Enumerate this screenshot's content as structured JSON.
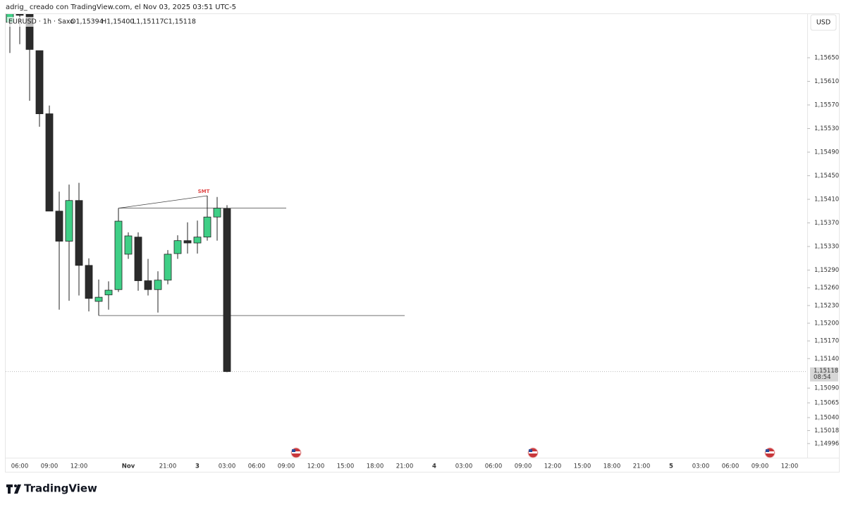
{
  "header": {
    "caption": "adrig_ creado con TradingView.com, el Nov 03, 2025 03:51 UTC-5",
    "brand": "TradingView"
  },
  "chart_data": {
    "type": "candlestick",
    "symbol": "EURUSD · 1h · Saxo",
    "legend_values": [
      "O1,15394",
      "H1,15400",
      "L1,15117",
      "C1,15118"
    ],
    "currency": "USD",
    "open": [
      1.1571,
      1.15724,
      1.15724,
      1.15662,
      1.15555,
      1.1539,
      1.15339,
      1.15408,
      1.15298,
      1.15237,
      1.15248,
      1.15257,
      1.15317,
      1.15346,
      1.15272,
      1.15257,
      1.15273,
      1.15318,
      1.1534,
      1.15336,
      1.15346,
      1.1538,
      1.15394
    ],
    "high": [
      1.1573,
      1.15726,
      1.15726,
      1.15662,
      1.15569,
      1.15423,
      1.15435,
      1.15438,
      1.1531,
      1.15274,
      1.15271,
      1.15395,
      1.15354,
      1.15354,
      1.15309,
      1.15288,
      1.15324,
      1.15349,
      1.15371,
      1.15374,
      1.15416,
      1.15414,
      1.154
    ],
    "low": [
      1.15658,
      1.15673,
      1.15577,
      1.15533,
      1.1539,
      1.15223,
      1.15238,
      1.15247,
      1.1522,
      1.15213,
      1.15223,
      1.15253,
      1.15309,
      1.15255,
      1.15247,
      1.15218,
      1.15266,
      1.15309,
      1.15318,
      1.15318,
      1.1534,
      1.1534,
      1.15117
    ],
    "close": [
      1.15726,
      1.15722,
      1.15664,
      1.15555,
      1.1539,
      1.15339,
      1.15408,
      1.15298,
      1.15242,
      1.15244,
      1.15256,
      1.15373,
      1.15348,
      1.15272,
      1.15257,
      1.15273,
      1.15317,
      1.1534,
      1.15336,
      1.15346,
      1.1538,
      1.15395,
      1.15118
    ],
    "up_color": "#3fcf86",
    "down_color": "#2b2b2b",
    "ylim": [
      1.14972,
      1.15724
    ],
    "yticks": [
      {
        "value": 1.1565,
        "label": "1,15650"
      },
      {
        "value": 1.1561,
        "label": "1,15610"
      },
      {
        "value": 1.1557,
        "label": "1,15570"
      },
      {
        "value": 1.1553,
        "label": "1,15530"
      },
      {
        "value": 1.1549,
        "label": "1,15490"
      },
      {
        "value": 1.1545,
        "label": "1,15450"
      },
      {
        "value": 1.1541,
        "label": "1,15410"
      },
      {
        "value": 1.1537,
        "label": "1,15370"
      },
      {
        "value": 1.1533,
        "label": "1,15330"
      },
      {
        "value": 1.1529,
        "label": "1,15290"
      },
      {
        "value": 1.1526,
        "label": "1,15260"
      },
      {
        "value": 1.1523,
        "label": "1,15230"
      },
      {
        "value": 1.152,
        "label": "1,15200"
      },
      {
        "value": 1.1517,
        "label": "1,15170"
      },
      {
        "value": 1.1514,
        "label": "1,15140"
      },
      {
        "value": 1.1509,
        "label": "1,15090"
      },
      {
        "value": 1.15065,
        "label": "1,15065"
      },
      {
        "value": 1.1504,
        "label": "1,15040"
      },
      {
        "value": 1.15018,
        "label": "1,15018"
      },
      {
        "value": 1.14996,
        "label": "1,14996"
      }
    ],
    "xticks": [
      "06:00",
      "09:00",
      "12:00",
      "Nov",
      "21:00",
      "3",
      "03:00",
      "06:00",
      "09:00",
      "12:00",
      "15:00",
      "18:00",
      "21:00",
      "4",
      "03:00",
      "06:00",
      "09:00",
      "12:00",
      "15:00",
      "18:00",
      "21:00",
      "5",
      "03:00",
      "06:00",
      "09:00",
      "12:00"
    ],
    "last_price": {
      "value": 1.15118,
      "label": "1,15118"
    },
    "countdown": "08:54",
    "drawings": [
      {
        "values": [
          1.15395,
          1.15416
        ],
        "text": "SMT"
      },
      {
        "values": [
          1.15395,
          1.15395
        ]
      },
      {
        "values": [
          1.15213,
          1.15213
        ]
      }
    ]
  }
}
